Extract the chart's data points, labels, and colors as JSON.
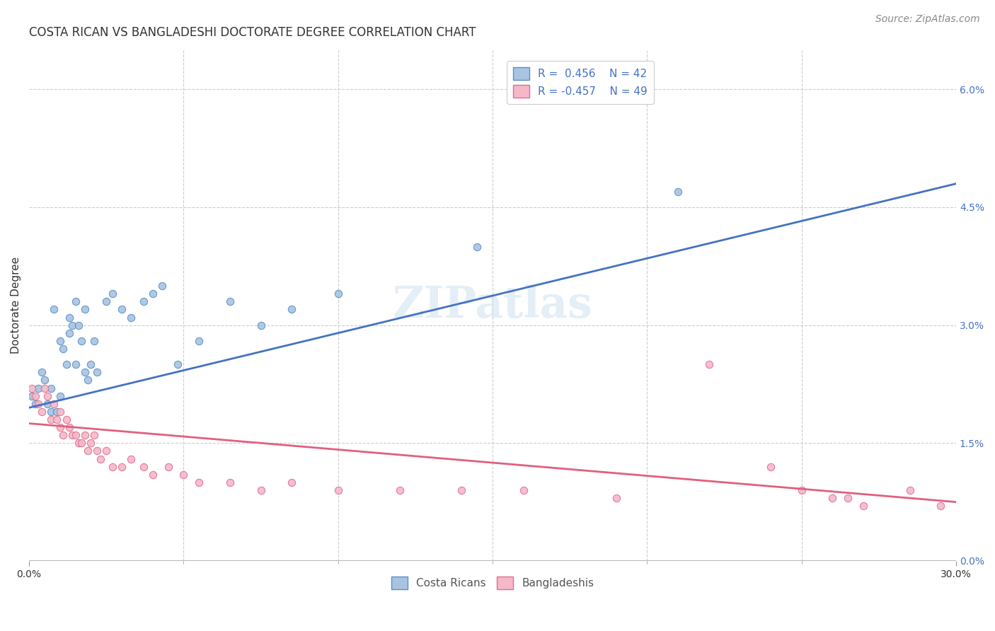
{
  "title": "COSTA RICAN VS BANGLADESHI DOCTORATE DEGREE CORRELATION CHART",
  "source": "Source: ZipAtlas.com",
  "ylabel": "Doctorate Degree",
  "xlim": [
    0.0,
    0.3
  ],
  "ylim": [
    0.0,
    0.065
  ],
  "xtick_major": [
    0.0,
    0.3
  ],
  "xtick_major_labels": [
    "0.0%",
    "30.0%"
  ],
  "xtick_minor": [
    0.05,
    0.1,
    0.15,
    0.2,
    0.25
  ],
  "yticks_right": [
    0.0,
    0.015,
    0.03,
    0.045,
    0.06
  ],
  "ytick_right_labels": [
    "0.0%",
    "1.5%",
    "3.0%",
    "4.5%",
    "6.0%"
  ],
  "watermark": "ZIPatlas",
  "blue_fill": "#a8c4e0",
  "pink_fill": "#f4b8c8",
  "blue_edge": "#5b8fc9",
  "pink_edge": "#e07090",
  "blue_line_color": "#4472c4",
  "pink_line_color": "#e06080",
  "legend_r_blue": "R =  0.456",
  "legend_n_blue": "N = 42",
  "legend_r_pink": "R = -0.457",
  "legend_n_pink": "N = 49",
  "blue_scatter_x": [
    0.001,
    0.002,
    0.003,
    0.004,
    0.005,
    0.006,
    0.007,
    0.007,
    0.008,
    0.009,
    0.01,
    0.01,
    0.011,
    0.012,
    0.013,
    0.013,
    0.014,
    0.015,
    0.015,
    0.016,
    0.017,
    0.018,
    0.018,
    0.019,
    0.02,
    0.021,
    0.022,
    0.025,
    0.027,
    0.03,
    0.033,
    0.037,
    0.04,
    0.043,
    0.048,
    0.055,
    0.065,
    0.075,
    0.085,
    0.1,
    0.145,
    0.21
  ],
  "blue_scatter_y": [
    0.021,
    0.02,
    0.022,
    0.024,
    0.023,
    0.02,
    0.022,
    0.019,
    0.032,
    0.019,
    0.021,
    0.028,
    0.027,
    0.025,
    0.029,
    0.031,
    0.03,
    0.025,
    0.033,
    0.03,
    0.028,
    0.024,
    0.032,
    0.023,
    0.025,
    0.028,
    0.024,
    0.033,
    0.034,
    0.032,
    0.031,
    0.033,
    0.034,
    0.035,
    0.025,
    0.028,
    0.033,
    0.03,
    0.032,
    0.034,
    0.04,
    0.047
  ],
  "pink_scatter_x": [
    0.001,
    0.002,
    0.003,
    0.004,
    0.005,
    0.006,
    0.007,
    0.008,
    0.009,
    0.01,
    0.01,
    0.011,
    0.012,
    0.013,
    0.014,
    0.015,
    0.016,
    0.017,
    0.018,
    0.019,
    0.02,
    0.021,
    0.022,
    0.023,
    0.025,
    0.027,
    0.03,
    0.033,
    0.037,
    0.04,
    0.045,
    0.05,
    0.055,
    0.065,
    0.075,
    0.085,
    0.1,
    0.12,
    0.14,
    0.16,
    0.19,
    0.22,
    0.24,
    0.25,
    0.26,
    0.265,
    0.27,
    0.285,
    0.295
  ],
  "pink_scatter_y": [
    0.022,
    0.021,
    0.02,
    0.019,
    0.022,
    0.021,
    0.018,
    0.02,
    0.018,
    0.017,
    0.019,
    0.016,
    0.018,
    0.017,
    0.016,
    0.016,
    0.015,
    0.015,
    0.016,
    0.014,
    0.015,
    0.016,
    0.014,
    0.013,
    0.014,
    0.012,
    0.012,
    0.013,
    0.012,
    0.011,
    0.012,
    0.011,
    0.01,
    0.01,
    0.009,
    0.01,
    0.009,
    0.009,
    0.009,
    0.009,
    0.008,
    0.025,
    0.012,
    0.009,
    0.008,
    0.008,
    0.007,
    0.009,
    0.007
  ],
  "blue_line_x": [
    0.0,
    0.3
  ],
  "blue_line_y_start": 0.0195,
  "blue_line_y_end": 0.048,
  "pink_line_x": [
    0.0,
    0.3
  ],
  "pink_line_y_start": 0.0175,
  "pink_line_y_end": 0.0075,
  "title_fontsize": 12,
  "axis_label_fontsize": 11,
  "tick_fontsize": 10,
  "legend_fontsize": 11,
  "source_fontsize": 10,
  "watermark_fontsize": 44,
  "scatter_size": 55,
  "background_color": "#ffffff",
  "grid_color": "#cccccc"
}
